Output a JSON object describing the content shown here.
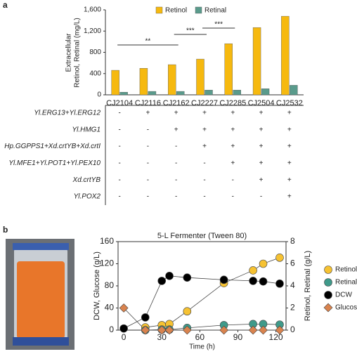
{
  "panel_labels": [
    "a",
    "b"
  ],
  "chart_data": [
    {
      "type": "bar",
      "y_label": [
        "Extracellular",
        "Retinol, Retinal (mg/L)"
      ],
      "categories": [
        "CJ2104",
        "CJ2116",
        "CJ2162",
        "CJ2227",
        "CJ2285",
        "CJ2504",
        "CJ2532"
      ],
      "series": [
        {
          "name": "Retinol",
          "color": "#f6b90f",
          "values": [
            462,
            500,
            568,
            673,
            963,
            1267,
            1480
          ]
        },
        {
          "name": "Retinal",
          "color": "#5a9b8c",
          "values": [
            50,
            65,
            65,
            90,
            90,
            115,
            180
          ]
        }
      ],
      "ylim": [
        0,
        1600
      ],
      "yticks": [
        0,
        400,
        800,
        {
          "value": 1200,
          "label": "1,200"
        },
        {
          "value": 1600,
          "label": "1,600"
        }
      ],
      "legend": "top",
      "annotations": [
        {
          "text": "**",
          "from": "CJ2104",
          "to": "CJ2162"
        },
        {
          "text": "***",
          "from": "CJ2162",
          "to": "CJ2227"
        },
        {
          "text": "***",
          "from": "CJ2227",
          "to": "CJ2285"
        }
      ]
    },
    {
      "type": "line",
      "title": "5-L Fermenter (Tween 80)",
      "x_label": "Time (h)",
      "y_label": "DCW, Glucose (g/L)",
      "y2_label": "Retinol, Retinal (g/L)",
      "x": [
        0,
        17,
        30,
        36,
        50,
        79,
        102,
        110,
        123
      ],
      "series": [
        {
          "name": "Retinol",
          "color": "#f6c232",
          "marker": "circle",
          "axis": "y2",
          "values": [
            null,
            0.25,
            0.45,
            0.55,
            1.7,
            4.25,
            5.4,
            6.0,
            6.55
          ]
        },
        {
          "name": "Retinal",
          "color": "#3f9a8a",
          "marker": "circle",
          "axis": "y2",
          "values": [
            null,
            0.0,
            0.05,
            0.05,
            0.2,
            0.45,
            0.55,
            0.55,
            0.5
          ]
        },
        {
          "name": "DCW",
          "color": "#000000",
          "marker": "circle",
          "values": [
            3,
            23,
            89,
            98,
            95,
            91,
            89,
            88,
            84
          ]
        },
        {
          "name": "Glucose",
          "color": "#d9834e",
          "marker": "diamond",
          "values": [
            40,
            0,
            0,
            0,
            0,
            0,
            0,
            0,
            0
          ]
        }
      ],
      "xlim": [
        -4.5,
        128
      ],
      "xticks": [
        0,
        30,
        60,
        90,
        120
      ],
      "ylim": [
        0,
        160
      ],
      "yticks": [
        0,
        40,
        80,
        120,
        160
      ],
      "y2lim": [
        0,
        8
      ],
      "y2ticks": [
        0,
        2,
        4,
        6,
        8
      ],
      "legend": "right"
    }
  ],
  "table": {
    "rows": [
      {
        "label": "Yl.ERG13+Yl.ERG12",
        "cells": [
          "-",
          "+",
          "+",
          "+",
          "+",
          "+",
          "+"
        ]
      },
      {
        "label": "Yl.HMG1",
        "cells": [
          "-",
          "-",
          "+",
          "+",
          "+",
          "+",
          "+"
        ]
      },
      {
        "label": "Hp.GGPPS1+Xd.crtYB+Xd.crtI",
        "cells": [
          "-",
          "-",
          "-",
          "+",
          "+",
          "+",
          "+"
        ]
      },
      {
        "label": "Yl.MFE1+Yl.POT1+Yl.PEX10",
        "cells": [
          "-",
          "-",
          "-",
          "-",
          "+",
          "+",
          "+"
        ]
      },
      {
        "label": "Xd.crtYB",
        "cells": [
          "-",
          "-",
          "-",
          "-",
          "-",
          "+",
          "+"
        ]
      },
      {
        "label": "Yl.POX2",
        "cells": [
          "-",
          "-",
          "-",
          "-",
          "-",
          "-",
          "+"
        ]
      }
    ]
  }
}
